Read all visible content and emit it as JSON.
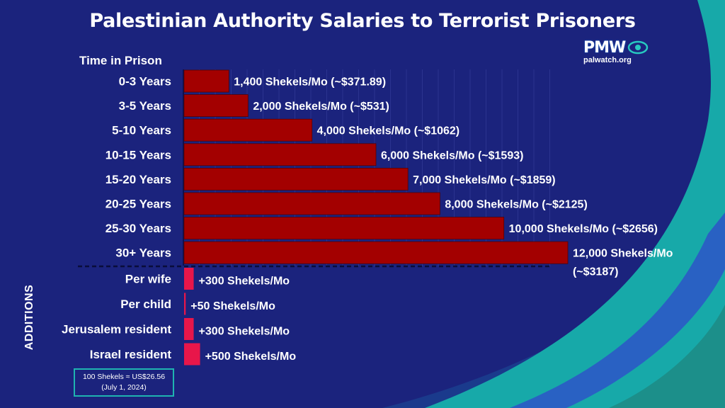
{
  "title": "Palestinian Authority Salaries to Terrorist Prisoners",
  "logo": {
    "text": "PMW",
    "url": "palwatch.org",
    "icon": "eye-icon"
  },
  "sections": {
    "additions": "ADDITIONS"
  },
  "note": {
    "line1": "100 Shekels ≈ US$26.56",
    "line2": "(July 1, 2024)"
  },
  "colors": {
    "background": "#1b237d",
    "prison_bar": "#a30000",
    "addition_bar": "#e8164a",
    "teal": "#14b3ad",
    "text": "#ffffff"
  },
  "chart_data": [
    {
      "type": "bar",
      "orientation": "horizontal",
      "ylabel": "Time in Prison",
      "categories": [
        "0-3 Years",
        "3-5 Years",
        "5-10 Years",
        "10-15 Years",
        "15-20 Years",
        "20-25 Years",
        "25-30 Years",
        "30+ Years"
      ],
      "values": [
        1400,
        2000,
        4000,
        6000,
        7000,
        8000,
        10000,
        12000
      ],
      "labels": [
        "1,400 Shekels/Mo (~$371.89)",
        "2,000 Shekels/Mo (~$531)",
        "4,000 Shekels/Mo (~$1062)",
        "6,000 Shekels/Mo (~$1593)",
        "7,000 Shekels/Mo (~$1859)",
        "8,000 Shekels/Mo (~$2125)",
        "10,000 Shekels/Mo (~$2656)",
        "12,000 Shekels/Mo (~$3187)"
      ],
      "xlim": [
        0,
        12000
      ]
    },
    {
      "type": "bar",
      "orientation": "horizontal",
      "categories": [
        "Per wife",
        "Per child",
        "Jerusalem resident",
        "Israel resident"
      ],
      "values": [
        300,
        50,
        300,
        500
      ],
      "labels": [
        "+300 Shekels/Mo",
        "+50 Shekels/Mo",
        "+300 Shekels/Mo",
        "+500 Shekels/Mo"
      ],
      "xlim": [
        0,
        12000
      ]
    }
  ]
}
